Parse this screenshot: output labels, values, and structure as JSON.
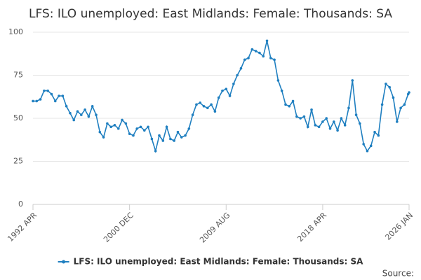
{
  "chart_data": {
    "type": "line",
    "title": "LFS: ILO unemployed: East Midlands: Female: Thousands: SA",
    "source": "Source:",
    "x": [
      1992.25,
      1992.583,
      1992.917,
      1993.25,
      1993.583,
      1993.917,
      1994.25,
      1994.583,
      1994.917,
      1995.25,
      1995.583,
      1995.917,
      1996.25,
      1996.583,
      1996.917,
      1997.25,
      1997.583,
      1997.917,
      1998.25,
      1998.583,
      1998.917,
      1999.25,
      1999.583,
      1999.917,
      2000.25,
      2000.583,
      2000.917,
      2001.25,
      2001.583,
      2001.917,
      2002.25,
      2002.583,
      2002.917,
      2003.25,
      2003.583,
      2003.917,
      2004.25,
      2004.583,
      2004.917,
      2005.25,
      2005.583,
      2005.917,
      2006.25,
      2006.583,
      2006.917,
      2007.25,
      2007.583,
      2007.917,
      2008.25,
      2008.583,
      2008.917,
      2009.25,
      2009.583,
      2009.917,
      2010.25,
      2010.583,
      2010.917,
      2011.25,
      2011.583,
      2011.917,
      2012.25,
      2012.583,
      2012.917,
      2013.25,
      2013.583,
      2013.917,
      2014.25,
      2014.583,
      2014.917,
      2015.25,
      2015.583,
      2015.917,
      2016.25,
      2016.583,
      2016.917,
      2017.25,
      2017.583,
      2017.917,
      2018.25,
      2018.583,
      2018.917,
      2019.25,
      2019.583,
      2019.917,
      2020.25,
      2020.583,
      2020.917,
      2021.25,
      2021.583,
      2021.917,
      2022.25,
      2022.583,
      2022.917,
      2023.25,
      2023.583,
      2023.917,
      2024.25,
      2024.583,
      2024.917,
      2025.25,
      2025.583,
      2025.917,
      2026.0
    ],
    "series": [
      {
        "name": "LFS: ILO unemployed: East Midlands: Female: Thousands: SA",
        "color": "#1f7fc0",
        "values": [
          60,
          60,
          61,
          66,
          66,
          64,
          60,
          63,
          63,
          57,
          53,
          49,
          54,
          52,
          55,
          51,
          57,
          52,
          42,
          39,
          47,
          45,
          46,
          44,
          49,
          47,
          41,
          40,
          44,
          45,
          43,
          45,
          38,
          31,
          40,
          37,
          45,
          38,
          37,
          42,
          39,
          40,
          44,
          52,
          58,
          59,
          57,
          56,
          58,
          54,
          62,
          66,
          67,
          63,
          70,
          75,
          79,
          84,
          85,
          90,
          89,
          88,
          86,
          95,
          85,
          84,
          72,
          66,
          58,
          57,
          60,
          51,
          50,
          51,
          45,
          55,
          46,
          45,
          48,
          50,
          44,
          48,
          43,
          50,
          46,
          56,
          72,
          52,
          47,
          35,
          31,
          34,
          42,
          40,
          58,
          70,
          68,
          62,
          48,
          56,
          58,
          64,
          65
        ]
      }
    ],
    "xlim": [
      1992.25,
      2026.0
    ],
    "xticks": [
      {
        "value": 1992.25,
        "label": "1992 APR"
      },
      {
        "value": 2000.917,
        "label": "2000 DEC"
      },
      {
        "value": 2009.583,
        "label": "2009 AUG"
      },
      {
        "value": 2018.25,
        "label": "2018 APR"
      },
      {
        "value": 2026.0,
        "label": "2026 JAN"
      }
    ],
    "ylim": [
      0,
      100
    ],
    "yticks": [
      0,
      25,
      50,
      75,
      100
    ],
    "grid": true
  }
}
